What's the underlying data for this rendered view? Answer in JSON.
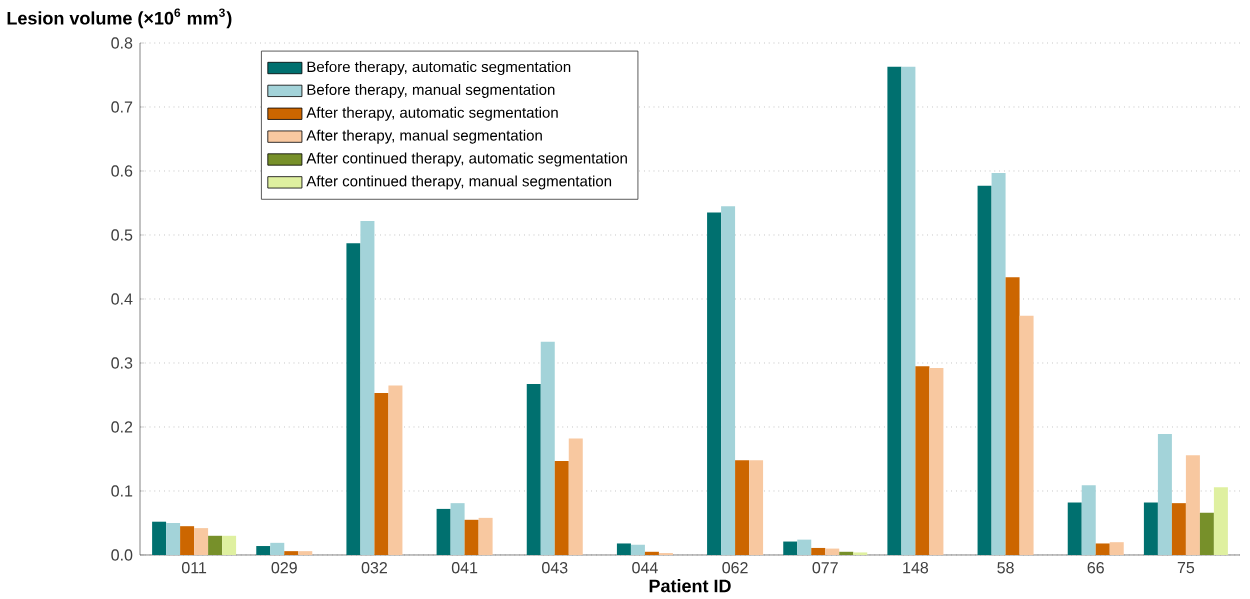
{
  "chart_data": {
    "type": "bar",
    "ylabel": "**Lesion volume (×10$^{6}$ mm$^{3}$)**",
    "xlabel": "**Patient ID**",
    "categories": [
      "011",
      "029",
      "032",
      "041",
      "043",
      "044",
      "062",
      "077",
      "148",
      "58",
      "66",
      "75"
    ],
    "series": [
      {
        "name": "Before therapy, automatic segmentation",
        "color": "#00706f",
        "values": [
          0.052,
          0.014,
          0.487,
          0.072,
          0.267,
          0.018,
          0.535,
          0.021,
          0.763,
          0.577,
          0.082,
          0.082
        ]
      },
      {
        "name": "Before therapy, manual segmentation",
        "color": "#a3d3d9",
        "values": [
          0.05,
          0.019,
          0.522,
          0.081,
          0.333,
          0.016,
          0.545,
          0.024,
          0.763,
          0.597,
          0.109,
          0.189
        ]
      },
      {
        "name": "After therapy, automatic segmentation",
        "color": "#cc6600",
        "values": [
          0.045,
          0.006,
          0.253,
          0.055,
          0.147,
          0.005,
          0.148,
          0.011,
          0.295,
          0.434,
          0.018,
          0.081
        ]
      },
      {
        "name": "After therapy, manual segmentation",
        "color": "#f8c8a0",
        "values": [
          0.042,
          0.006,
          0.265,
          0.058,
          0.182,
          0.003,
          0.148,
          0.01,
          0.292,
          0.374,
          0.02,
          0.156
        ]
      },
      {
        "name": "After continued therapy, automatic segmentation",
        "color": "#77902a",
        "values": [
          0.03,
          null,
          null,
          null,
          null,
          null,
          null,
          0.005,
          null,
          null,
          null,
          0.066
        ]
      },
      {
        "name": "After continued therapy, manual segmentation",
        "color": "#dff0a0",
        "values": [
          0.03,
          null,
          null,
          null,
          null,
          null,
          null,
          0.004,
          null,
          null,
          null,
          0.106
        ]
      }
    ],
    "ylim": [
      0,
      0.8
    ],
    "yticks": [
      {
        "value": 0,
        "label": "0.0"
      },
      0.1,
      0.2,
      0.3,
      0.4,
      0.5,
      0.6,
      0.7,
      0.8
    ],
    "grid": "y",
    "legend": "top left"
  }
}
